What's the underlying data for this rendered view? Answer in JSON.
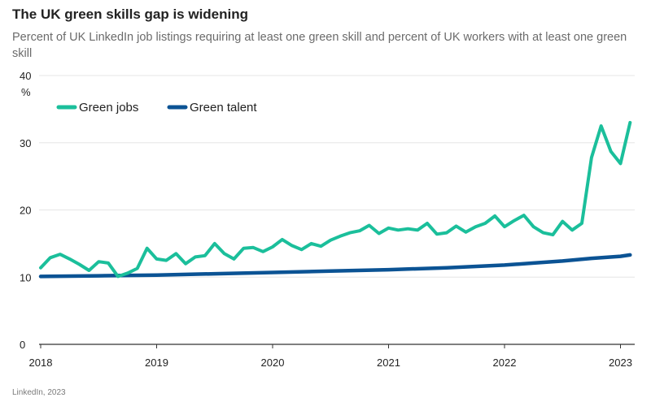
{
  "colors": {
    "green_jobs": "#1bbf9b",
    "green_talent": "#0b5394",
    "grid": "#e6e6e6",
    "axis": "#333333"
  },
  "chart_data": {
    "type": "line",
    "title": "The UK green skills gap is widening",
    "subtitle": "Percent of UK LinkedIn job listings requiring at least one green skill and percent of UK workers with at least one green skill",
    "source": "LinkedIn, 2023",
    "ylabel": "%",
    "xlabel": "",
    "ylim": [
      0,
      40
    ],
    "xlim": [
      2018.0,
      2023.12
    ],
    "y_ticks": [
      0,
      10,
      20,
      30,
      40
    ],
    "y_tick_labels": [
      "0",
      "10",
      "20",
      "30",
      "40"
    ],
    "x_ticks": [
      2018,
      2019,
      2020,
      2021,
      2022,
      2023
    ],
    "x_tick_labels": [
      "2018",
      "2019",
      "2020",
      "2021",
      "2022",
      "2023"
    ],
    "grid": true,
    "legend": [
      "Green jobs",
      "Green talent"
    ],
    "legend_position": "top-left",
    "series": [
      {
        "name": "Green jobs",
        "color": "#1bbf9b",
        "x": [
          2018.0,
          2018.083,
          2018.167,
          2018.25,
          2018.333,
          2018.417,
          2018.5,
          2018.583,
          2018.667,
          2018.75,
          2018.833,
          2018.917,
          2019.0,
          2019.083,
          2019.167,
          2019.25,
          2019.333,
          2019.417,
          2019.5,
          2019.583,
          2019.667,
          2019.75,
          2019.833,
          2019.917,
          2020.0,
          2020.083,
          2020.167,
          2020.25,
          2020.333,
          2020.417,
          2020.5,
          2020.583,
          2020.667,
          2020.75,
          2020.833,
          2020.917,
          2021.0,
          2021.083,
          2021.167,
          2021.25,
          2021.333,
          2021.417,
          2021.5,
          2021.583,
          2021.667,
          2021.75,
          2021.833,
          2021.917,
          2022.0,
          2022.083,
          2022.167,
          2022.25,
          2022.333,
          2022.417,
          2022.5,
          2022.583,
          2022.667,
          2022.75,
          2022.833,
          2022.917,
          2023.0,
          2023.083
        ],
        "values": [
          11.4,
          12.9,
          13.4,
          12.7,
          11.9,
          11.0,
          12.3,
          12.1,
          10.1,
          10.6,
          11.3,
          14.3,
          12.7,
          12.5,
          13.5,
          12.0,
          13.0,
          13.2,
          15.0,
          13.5,
          12.7,
          14.3,
          14.4,
          13.8,
          14.5,
          15.6,
          14.7,
          14.1,
          15.0,
          14.6,
          15.5,
          16.1,
          16.6,
          16.9,
          17.7,
          16.5,
          17.3,
          17.0,
          17.2,
          17.0,
          18.0,
          16.4,
          16.6,
          17.6,
          16.7,
          17.5,
          18.0,
          19.1,
          17.5,
          18.4,
          19.2,
          17.5,
          16.6,
          16.3,
          18.3,
          17.0,
          18.0,
          27.8,
          32.5,
          28.7,
          26.9,
          33.0
        ]
      },
      {
        "name": "Green talent",
        "color": "#0b5394",
        "x": [
          2018.0,
          2018.5,
          2019.0,
          2019.5,
          2020.0,
          2020.5,
          2021.0,
          2021.5,
          2022.0,
          2022.25,
          2022.5,
          2022.75,
          2023.0,
          2023.083
        ],
        "values": [
          10.1,
          10.2,
          10.3,
          10.5,
          10.7,
          10.9,
          11.1,
          11.4,
          11.8,
          12.1,
          12.4,
          12.8,
          13.1,
          13.3
        ]
      }
    ]
  }
}
